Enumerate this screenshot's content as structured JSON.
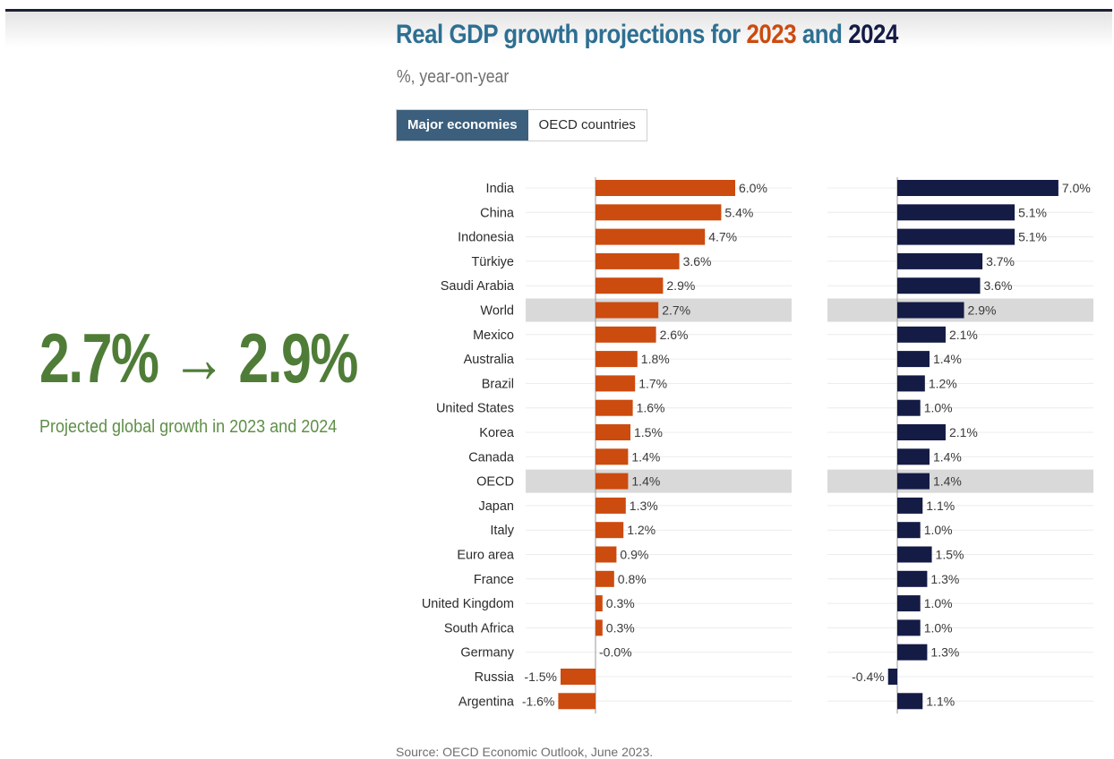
{
  "header": {
    "title_prefix": "Real GDP growth projections for ",
    "title_year1": "2023",
    "title_mid": " and ",
    "title_year2": "2024",
    "subtitle": "%, year-on-year"
  },
  "tabs": [
    {
      "label": "Major economies",
      "active": true
    },
    {
      "label": "OECD countries",
      "active": false
    }
  ],
  "kpi": {
    "value": "2.7% → 2.9%",
    "caption": "Projected global growth in 2023 and 2024"
  },
  "source": "Source: OECD Economic Outlook, June 2023.",
  "colors": {
    "title_blue": "#2e6f92",
    "year1": "#cc4b0f",
    "year2": "#141b45",
    "kpi_green": "#4f7d38",
    "highlight": "#d9d9d9",
    "tab_active": "#3b5f7d"
  },
  "chart_data": {
    "type": "bar",
    "orientation": "horizontal",
    "title": "Real GDP growth projections for 2023 and 2024",
    "subtitle": "%, year-on-year",
    "categories": [
      "India",
      "China",
      "Indonesia",
      "Türkiye",
      "Saudi Arabia",
      "World",
      "Mexico",
      "Australia",
      "Brazil",
      "United States",
      "Korea",
      "Canada",
      "OECD",
      "Japan",
      "Italy",
      "Euro area",
      "France",
      "United Kingdom",
      "South Africa",
      "Germany",
      "Russia",
      "Argentina"
    ],
    "highlighted": [
      "World",
      "OECD"
    ],
    "series": [
      {
        "name": "2023",
        "color": "#cc4b0f",
        "values": [
          6.0,
          5.4,
          4.7,
          3.6,
          2.9,
          2.7,
          2.6,
          1.8,
          1.7,
          1.6,
          1.5,
          1.4,
          1.4,
          1.3,
          1.2,
          0.9,
          0.8,
          0.3,
          0.3,
          -0.0,
          -1.5,
          -1.6
        ],
        "labels": [
          "6.0%",
          "5.4%",
          "4.7%",
          "3.6%",
          "2.9%",
          "2.7%",
          "2.6%",
          "1.8%",
          "1.7%",
          "1.6%",
          "1.5%",
          "1.4%",
          "1.4%",
          "1.3%",
          "1.2%",
          "0.9%",
          "0.8%",
          "0.3%",
          "0.3%",
          "-0.0%",
          "-1.5%",
          "-1.6%"
        ]
      },
      {
        "name": "2024",
        "color": "#141b45",
        "values": [
          7.0,
          5.1,
          5.1,
          3.7,
          3.6,
          2.9,
          2.1,
          1.4,
          1.2,
          1.0,
          2.1,
          1.4,
          1.4,
          1.1,
          1.0,
          1.5,
          1.3,
          1.0,
          1.0,
          1.3,
          -0.4,
          1.1
        ],
        "labels": [
          "7.0%",
          "5.1%",
          "5.1%",
          "3.7%",
          "3.6%",
          "2.9%",
          "2.1%",
          "1.4%",
          "1.2%",
          "1.0%",
          "2.1%",
          "1.4%",
          "1.4%",
          "1.1%",
          "1.0%",
          "1.5%",
          "1.3%",
          "1.0%",
          "1.0%",
          "1.3%",
          "-0.4%",
          "1.1%"
        ]
      }
    ]
  }
}
